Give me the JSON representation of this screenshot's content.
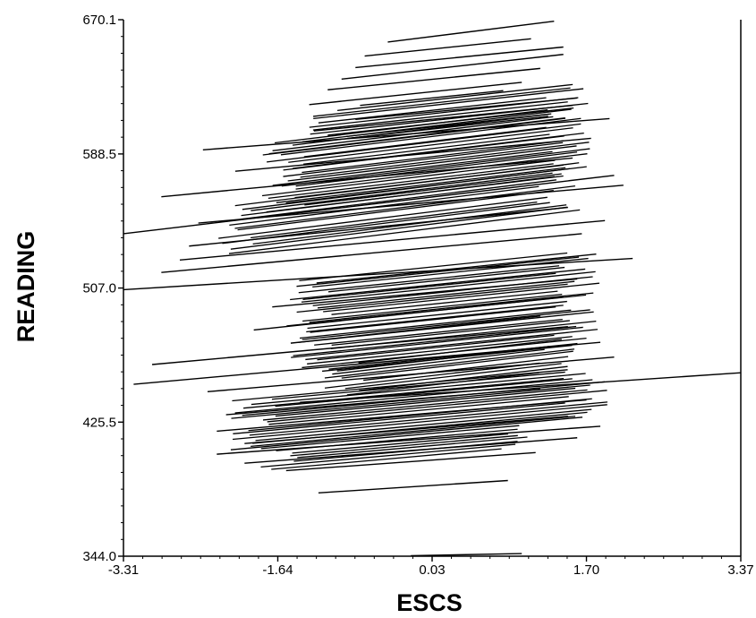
{
  "chart_data": {
    "type": "line",
    "xlabel": "ESCS",
    "ylabel": "READING",
    "xlim": [
      -3.31,
      3.37
    ],
    "ylim": [
      344.0,
      670.1
    ],
    "x_ticks": [
      "-3.31",
      "-1.64",
      "0.03",
      "1.70",
      "3.37"
    ],
    "y_ticks": [
      "344.0",
      "425.5",
      "507.0",
      "588.5",
      "670.1"
    ],
    "grid": false,
    "legend": "none",
    "series": [
      {
        "x": [
          -0.45,
          1.35
        ],
        "y": [
          656.5,
          669.2
        ]
      },
      {
        "x": [
          -0.7,
          1.1
        ],
        "y": [
          648.0,
          658.5
        ]
      },
      {
        "x": [
          -0.8,
          1.45
        ],
        "y": [
          641.0,
          653.5
        ]
      },
      {
        "x": [
          -0.95,
          1.45
        ],
        "y": [
          634.0,
          649.0
        ]
      },
      {
        "x": [
          -1.1,
          1.2
        ],
        "y": [
          627.5,
          640.5
        ]
      },
      {
        "x": [
          -1.3,
          1.0
        ],
        "y": [
          618.5,
          632.0
        ]
      },
      {
        "x": [
          -0.75,
          0.8
        ],
        "y": [
          618.0,
          627.0
        ]
      },
      {
        "x": [
          -0.8,
          1.6
        ],
        "y": [
          609.5,
          622.5
        ]
      },
      {
        "x": [
          -1.25,
          1.55
        ],
        "y": [
          602.5,
          618.0
        ]
      },
      {
        "x": [
          -2.45,
          1.95
        ],
        "y": [
          591.0,
          610.0
        ]
      },
      {
        "x": [
          -2.1,
          1.75
        ],
        "y": [
          578.0,
          598.0
        ]
      },
      {
        "x": [
          -2.9,
          1.55
        ],
        "y": [
          562.5,
          586.0
        ]
      },
      {
        "x": [
          -3.31,
          2.0
        ],
        "y": [
          540.0,
          575.5
        ]
      },
      {
        "x": [
          -2.5,
          2.1
        ],
        "y": [
          546.5,
          569.5
        ]
      },
      {
        "x": [
          -2.6,
          1.5
        ],
        "y": [
          532.5,
          556.0
        ]
      },
      {
        "x": [
          -2.7,
          1.9
        ],
        "y": [
          524.0,
          548.0
        ]
      },
      {
        "x": [
          -2.9,
          1.65
        ],
        "y": [
          516.5,
          540.0
        ]
      },
      {
        "x": [
          -3.31,
          2.2
        ],
        "y": [
          506.0,
          525.0
        ]
      },
      {
        "x": [
          -1.7,
          1.6
        ],
        "y": [
          495.5,
          512.5
        ]
      },
      {
        "x": [
          -1.9,
          1.45
        ],
        "y": [
          481.5,
          501.5
        ]
      },
      {
        "x": [
          -1.5,
          1.2
        ],
        "y": [
          473.5,
          490.0
        ]
      },
      {
        "x": [
          -3.0,
          1.5
        ],
        "y": [
          460.5,
          483.5
        ]
      },
      {
        "x": [
          -3.2,
          1.85
        ],
        "y": [
          448.5,
          474.0
        ]
      },
      {
        "x": [
          -2.4,
          2.0
        ],
        "y": [
          444.0,
          465.0
        ]
      },
      {
        "x": [
          -1.4,
          3.37
        ],
        "y": [
          437.5,
          455.5
        ]
      },
      {
        "x": [
          -2.2,
          1.2
        ],
        "y": [
          430.0,
          446.0
        ]
      },
      {
        "x": [
          -2.3,
          1.7
        ],
        "y": [
          420.0,
          439.0
        ]
      },
      {
        "x": [
          -2.0,
          1.5
        ],
        "y": [
          412.5,
          429.0
        ]
      },
      {
        "x": [
          -2.3,
          1.85
        ],
        "y": [
          406.0,
          423.0
        ]
      },
      {
        "x": [
          -2.0,
          1.6
        ],
        "y": [
          400.5,
          416.0
        ]
      },
      {
        "x": [
          -1.55,
          1.15
        ],
        "y": [
          396.0,
          407.0
        ]
      },
      {
        "x": [
          -1.2,
          0.85
        ],
        "y": [
          382.5,
          390.0
        ]
      },
      {
        "x": [
          -0.2,
          1.0
        ],
        "y": [
          344.3,
          345.6
        ]
      }
    ],
    "bands": [
      {
        "y0a": 596.0,
        "y0b": 614.5,
        "x0": -1.1,
        "x1": 1.5,
        "slope": 6.2,
        "lines": 10
      },
      {
        "y0a": 555.0,
        "y0b": 596.5,
        "x0": -1.6,
        "x1": 1.5,
        "slope": 6.8,
        "lines": 28
      },
      {
        "y0a": 528.5,
        "y0b": 556.5,
        "x0": -2.1,
        "x1": 1.4,
        "slope": 7.0,
        "lines": 14
      },
      {
        "y0a": 455.5,
        "y0b": 512.0,
        "x0": -1.3,
        "x1": 1.6,
        "slope": 5.8,
        "lines": 34
      },
      {
        "y0a": 442.0,
        "y0b": 460.0,
        "x0": -0.9,
        "x1": 1.4,
        "slope": 6.5,
        "lines": 10
      },
      {
        "y0a": 410.0,
        "y0b": 440.0,
        "x0": -1.9,
        "x1": 1.7,
        "slope": 5.2,
        "lines": 20
      },
      {
        "y0a": 398.0,
        "y0b": 410.0,
        "x0": -1.6,
        "x1": 1.0,
        "slope": 5.0,
        "lines": 8
      }
    ]
  }
}
